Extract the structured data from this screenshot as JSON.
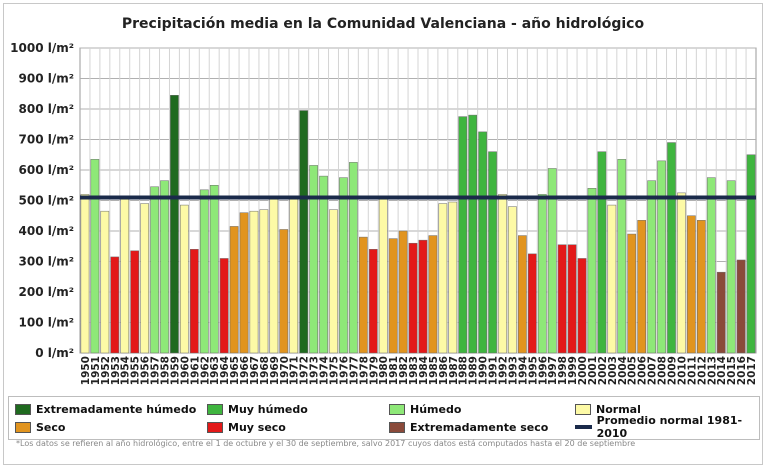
{
  "title": "Precipitación media en la Comunidad Valenciana - año hidrológico",
  "footnote": "*Los datos se refieren al año hidrológico, entre el 1 de octubre y el 30 de septiembre, salvo 2017 cuyos datos está computados hasta el 20 de septiembre",
  "colors": {
    "extremely_wet": "#1f6a1f",
    "very_wet": "#3fb53f",
    "wet": "#8ee878",
    "normal": "#fdfaa6",
    "dry": "#e1941f",
    "very_dry": "#e31919",
    "extremely_dry": "#8a4a3a",
    "average_line": "#1a2a4a"
  },
  "legend": {
    "extremely_wet": "Extremadamente húmedo",
    "very_wet": "Muy húmedo",
    "wet": "Húmedo",
    "normal": "Normal",
    "dry": "Seco",
    "very_dry": "Muy seco",
    "extremely_dry": "Extremadamente seco",
    "average_line": "Promedio normal 1981-2010"
  },
  "chart_data": {
    "type": "bar",
    "title": "Precipitación media en la Comunidad Valenciana - año hidrológico",
    "xlabel": "",
    "ylabel": "",
    "ylim": [
      0,
      1000
    ],
    "y_ticks": [
      "0 l/m²",
      "100 l/m²",
      "200 l/m²",
      "300 l/m²",
      "400 l/m²",
      "500 l/m²",
      "600 l/m²",
      "700 l/m²",
      "800 l/m²",
      "900 l/m²",
      "1000 l/m²"
    ],
    "grid": true,
    "average_value": 510,
    "categories": [
      "1950",
      "1951",
      "1952",
      "1953",
      "1954",
      "1955",
      "1956",
      "1957",
      "1958",
      "1959",
      "1960",
      "1961",
      "1962",
      "1963",
      "1964",
      "1965",
      "1966",
      "1967",
      "1968",
      "1969",
      "1970",
      "1971",
      "1972",
      "1973",
      "1974",
      "1975",
      "1976",
      "1977",
      "1978",
      "1979",
      "1980",
      "1981",
      "1982",
      "1983",
      "1984",
      "1985",
      "1986",
      "1987",
      "1988",
      "1989",
      "1990",
      "1991",
      "1992",
      "1993",
      "1994",
      "1995",
      "1996",
      "1997",
      "1998",
      "1999",
      "2000",
      "2001",
      "2002",
      "2003",
      "2004",
      "2005",
      "2006",
      "2007",
      "2008",
      "2009",
      "2010",
      "2011",
      "2012",
      "2013",
      "2014",
      "2015",
      "2016",
      "2017"
    ],
    "values": [
      520,
      635,
      465,
      315,
      510,
      335,
      490,
      545,
      565,
      845,
      485,
      340,
      535,
      550,
      310,
      415,
      460,
      465,
      470,
      510,
      405,
      515,
      795,
      615,
      580,
      470,
      575,
      625,
      380,
      340,
      505,
      375,
      400,
      360,
      370,
      385,
      490,
      495,
      775,
      780,
      725,
      660,
      520,
      480,
      385,
      325,
      520,
      605,
      355,
      355,
      310,
      540,
      660,
      485,
      635,
      390,
      435,
      565,
      630,
      690,
      525,
      450,
      435,
      575,
      265,
      565,
      305,
      650
    ],
    "classes": [
      "normal",
      "wet",
      "normal",
      "very_dry",
      "normal",
      "very_dry",
      "normal",
      "wet",
      "wet",
      "extremely_wet",
      "normal",
      "very_dry",
      "wet",
      "wet",
      "very_dry",
      "dry",
      "dry",
      "normal",
      "normal",
      "normal",
      "dry",
      "normal",
      "extremely_wet",
      "wet",
      "wet",
      "normal",
      "wet",
      "wet",
      "dry",
      "very_dry",
      "normal",
      "dry",
      "dry",
      "very_dry",
      "very_dry",
      "dry",
      "normal",
      "normal",
      "very_wet",
      "very_wet",
      "very_wet",
      "very_wet",
      "normal",
      "normal",
      "dry",
      "very_dry",
      "wet",
      "wet",
      "very_dry",
      "very_dry",
      "very_dry",
      "wet",
      "very_wet",
      "normal",
      "wet",
      "dry",
      "dry",
      "wet",
      "wet",
      "very_wet",
      "normal",
      "dry",
      "dry",
      "wet",
      "extremely_dry",
      "wet",
      "extremely_dry",
      "very_wet"
    ],
    "legend_position": "bottom"
  }
}
